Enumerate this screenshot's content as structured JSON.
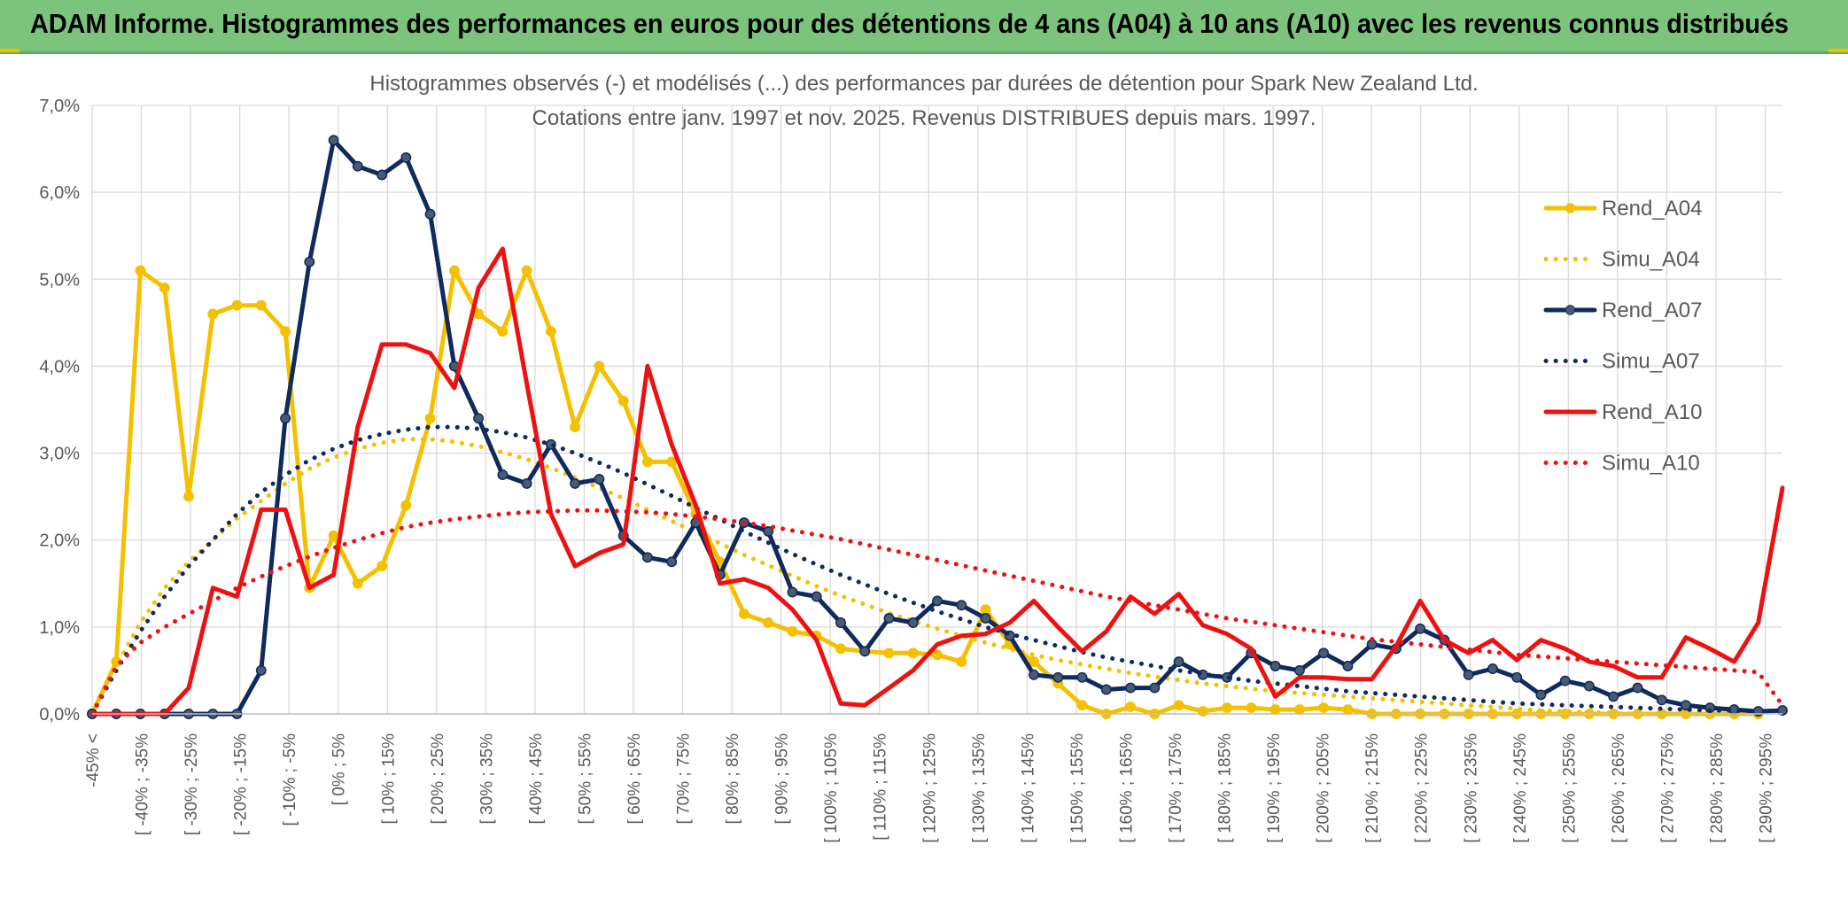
{
  "banner": {
    "title": "ADAM Informe. Histogrammes des performances en euros pour des détentions de 4 ans (A04) à 10 ans (A10) avec les revenus connus distribués"
  },
  "colors": {
    "banner_bg": "#7cc47c",
    "corner_accent": "#f0c000",
    "Rend_A04": "#f5c000",
    "Simu_A04": "#f5c000",
    "Rend_A07": "#0f2a5c",
    "Simu_A07": "#0f2a5c",
    "Rend_A10": "#ee1111",
    "Simu_A10": "#ee1111",
    "grid": "#d9d9d9",
    "axis_text": "#595959"
  },
  "chart_data": {
    "type": "line",
    "title_line1": "Histogrammes observés (-) et modélisés (...) des performances par durées de détention pour Spark New Zealand Ltd.",
    "title_line2": "Cotations entre janv. 1997 et nov. 2025. Revenus DISTRIBUES depuis mars. 1997.",
    "xlabel": "",
    "ylabel": "",
    "ylim": [
      0,
      7
    ],
    "yticks": [
      "0,0%",
      "1,0%",
      "2,0%",
      "3,0%",
      "4,0%",
      "5,0%",
      "6,0%",
      "7,0%"
    ],
    "grid": true,
    "legend_position": "right",
    "x_tick_labels": [
      "-45% <",
      "[ -40% ; -35%",
      "[ -30% ; -25%",
      "[ -20% ; -15%",
      "[ -10% ; -5%",
      "[ 0% ; 5%",
      "[ 10% ; 15%",
      "[ 20% ; 25%",
      "[ 30% ; 35%",
      "[ 40% ; 45%",
      "[ 50% ; 55%",
      "[ 60% ; 65%",
      "[ 70% ; 75%",
      "[ 80% ; 85%",
      "[ 90% ; 95%",
      "[ 100% ; 105%",
      "[ 110% ; 115%",
      "[ 120% ; 125%",
      "[ 130% ; 135%",
      "[ 140% ; 145%",
      "[ 150% ; 155%",
      "[ 160% ; 165%",
      "[ 170% ; 175%",
      "[ 180% ; 185%",
      "[ 190% ; 195%",
      "[ 200% ; 205%",
      "[ 210% ; 215%",
      "[ 220% ; 225%",
      "[ 230% ; 235%",
      "[ 240% ; 245%",
      "[ 250% ; 255%",
      "[ 260% ; 265%",
      "[ 270% ; 275%",
      "[ 280% ; 285%",
      "[ 290% ; 295%"
    ],
    "series": [
      {
        "name": "Rend_A04",
        "style": "solid",
        "marker": "circle",
        "values": [
          0.0,
          0.6,
          5.1,
          4.9,
          2.5,
          4.6,
          4.7,
          4.7,
          4.4,
          1.45,
          2.05,
          1.5,
          1.7,
          2.4,
          3.4,
          5.1,
          4.6,
          4.4,
          5.1,
          4.4,
          3.3,
          4.0,
          3.6,
          2.9,
          2.9,
          2.3,
          1.75,
          1.15,
          1.05,
          0.95,
          0.9,
          0.75,
          0.72,
          0.7,
          0.7,
          0.68,
          0.6,
          1.2,
          0.8,
          0.6,
          0.35,
          0.1,
          0.0,
          0.08,
          0.0,
          0.1,
          0.03,
          0.07,
          0.07,
          0.05,
          0.05,
          0.07,
          0.05,
          0.0,
          0.0,
          0.0,
          0.0,
          0.0,
          0.0,
          0.0,
          0.0,
          0.0,
          0.0,
          0.0,
          0.0,
          0.0,
          0.0,
          0.0,
          0.0,
          0.0
        ]
      },
      {
        "name": "Simu_A04",
        "style": "dotted",
        "marker": "none",
        "values": [
          0.0,
          0.55,
          1.05,
          1.45,
          1.75,
          2.0,
          2.25,
          2.45,
          2.65,
          2.82,
          2.95,
          3.05,
          3.12,
          3.16,
          3.16,
          3.13,
          3.08,
          3.01,
          2.93,
          2.83,
          2.72,
          2.6,
          2.48,
          2.35,
          2.22,
          2.09,
          1.96,
          1.83,
          1.71,
          1.59,
          1.47,
          1.36,
          1.26,
          1.16,
          1.07,
          0.98,
          0.9,
          0.82,
          0.75,
          0.68,
          0.62,
          0.57,
          0.52,
          0.47,
          0.43,
          0.39,
          0.35,
          0.32,
          0.29,
          0.26,
          0.24,
          0.22,
          0.2,
          0.18,
          0.16,
          0.14,
          0.12,
          0.1,
          0.08,
          0.06,
          0.04,
          0.03,
          0.02,
          0.01,
          0.0,
          0.0,
          0.0,
          0.0,
          0.0,
          0.0
        ]
      },
      {
        "name": "Rend_A07",
        "style": "solid",
        "marker": "circle",
        "values": [
          0.0,
          0.0,
          0.0,
          0.0,
          0.0,
          0.0,
          0.0,
          0.5,
          3.4,
          5.2,
          6.6,
          6.3,
          6.2,
          6.4,
          5.75,
          4.0,
          3.4,
          2.75,
          2.65,
          3.1,
          2.65,
          2.7,
          2.05,
          1.8,
          1.75,
          2.2,
          1.6,
          2.2,
          2.1,
          1.4,
          1.35,
          1.05,
          0.72,
          1.1,
          1.05,
          1.3,
          1.25,
          1.1,
          0.9,
          0.45,
          0.42,
          0.42,
          0.28,
          0.3,
          0.3,
          0.6,
          0.45,
          0.42,
          0.7,
          0.55,
          0.5,
          0.7,
          0.55,
          0.8,
          0.75,
          0.98,
          0.85,
          0.45,
          0.52,
          0.42,
          0.22,
          0.38,
          0.32,
          0.2,
          0.3,
          0.16,
          0.1,
          0.07,
          0.05,
          0.03,
          0.04
        ]
      },
      {
        "name": "Simu_A07",
        "style": "dotted",
        "marker": "none",
        "values": [
          0.0,
          0.5,
          0.95,
          1.35,
          1.7,
          2.0,
          2.3,
          2.55,
          2.75,
          2.92,
          3.05,
          3.15,
          3.22,
          3.27,
          3.3,
          3.3,
          3.28,
          3.24,
          3.18,
          3.1,
          3.0,
          2.89,
          2.77,
          2.64,
          2.51,
          2.37,
          2.24,
          2.1,
          1.97,
          1.84,
          1.72,
          1.6,
          1.49,
          1.38,
          1.28,
          1.18,
          1.09,
          1.0,
          0.92,
          0.85,
          0.78,
          0.71,
          0.65,
          0.6,
          0.55,
          0.5,
          0.46,
          0.42,
          0.38,
          0.35,
          0.32,
          0.29,
          0.26,
          0.24,
          0.22,
          0.2,
          0.18,
          0.16,
          0.14,
          0.12,
          0.11,
          0.1,
          0.09,
          0.08,
          0.07,
          0.06,
          0.05,
          0.04,
          0.04,
          0.03
        ]
      },
      {
        "name": "Rend_A10",
        "style": "solid",
        "marker": "none",
        "values": [
          0.0,
          0.0,
          0.0,
          0.0,
          0.3,
          1.45,
          1.35,
          2.35,
          2.35,
          1.45,
          1.6,
          3.3,
          4.25,
          4.25,
          4.15,
          3.75,
          4.9,
          5.35,
          3.8,
          2.3,
          1.7,
          1.85,
          1.95,
          4.0,
          3.1,
          2.4,
          1.5,
          1.55,
          1.45,
          1.2,
          0.85,
          0.12,
          0.1,
          0.3,
          0.5,
          0.8,
          0.9,
          0.92,
          1.05,
          1.3,
          1.0,
          0.72,
          0.95,
          1.35,
          1.15,
          1.38,
          1.02,
          0.92,
          0.75,
          0.2,
          0.42,
          0.42,
          0.4,
          0.4,
          0.78,
          1.3,
          0.85,
          0.7,
          0.85,
          0.62,
          0.85,
          0.75,
          0.6,
          0.55,
          0.42,
          0.42,
          0.88,
          0.75,
          0.6,
          1.05,
          2.6
        ]
      },
      {
        "name": "Simu_A10",
        "style": "dotted",
        "marker": "none",
        "values": [
          0.0,
          0.55,
          0.82,
          1.0,
          1.15,
          1.3,
          1.45,
          1.58,
          1.7,
          1.81,
          1.91,
          2.0,
          2.08,
          2.15,
          2.2,
          2.24,
          2.27,
          2.3,
          2.32,
          2.33,
          2.34,
          2.34,
          2.33,
          2.32,
          2.3,
          2.27,
          2.24,
          2.2,
          2.16,
          2.11,
          2.06,
          2.01,
          1.95,
          1.89,
          1.83,
          1.77,
          1.71,
          1.65,
          1.59,
          1.53,
          1.47,
          1.41,
          1.35,
          1.3,
          1.25,
          1.2,
          1.15,
          1.1,
          1.06,
          1.02,
          0.98,
          0.94,
          0.9,
          0.86,
          0.83,
          0.8,
          0.77,
          0.74,
          0.71,
          0.68,
          0.66,
          0.64,
          0.62,
          0.6,
          0.58,
          0.56,
          0.54,
          0.52,
          0.5,
          0.48,
          0.1
        ]
      }
    ],
    "legend": [
      "Rend_A04",
      "Simu_A04",
      "Rend_A07",
      "Simu_A07",
      "Rend_A10",
      "Simu_A10"
    ]
  }
}
